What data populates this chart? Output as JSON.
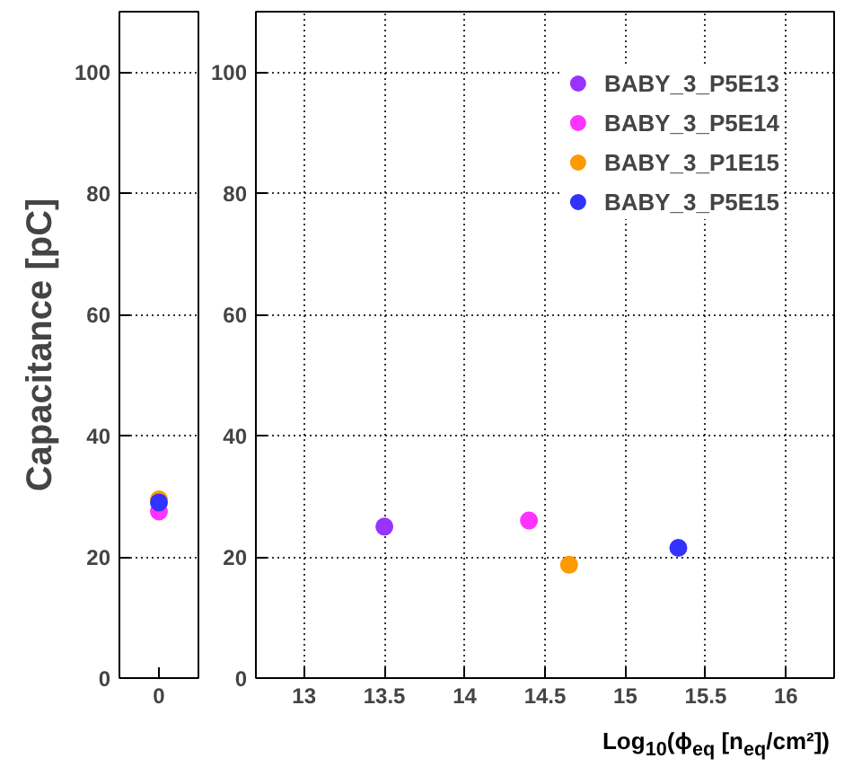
{
  "chart_data": [
    {
      "type": "scatter",
      "ylabel": "Capacitance [pC]",
      "categories": [
        "0"
      ],
      "ylim": [
        0,
        110
      ],
      "yticks": [
        0,
        20,
        40,
        60,
        80,
        100
      ],
      "grid": "y",
      "marker": "circle",
      "legend": false,
      "series": [
        {
          "color": "#9933ff",
          "values": [
            null
          ]
        },
        {
          "color": "#ff33ff",
          "values": [
            27.5
          ]
        },
        {
          "color": "#ff9900",
          "values": [
            29.5
          ]
        },
        {
          "color": "#3333ff",
          "values": [
            29
          ]
        }
      ]
    },
    {
      "type": "scatter",
      "xlabel": "Log$_{10}$(ϕ$_{eq}$ [n$_{eq}$/cm²])",
      "xlim": [
        12.7,
        16.3
      ],
      "xticks": [
        13,
        13.5,
        14,
        14.5,
        15,
        15.5,
        16
      ],
      "ylim": [
        0,
        110
      ],
      "yticks": [
        0,
        20,
        40,
        60,
        80,
        100
      ],
      "grid": true,
      "marker": "circle",
      "legend": "top right",
      "series": [
        {
          "name": "BABY_3_P5E13",
          "color": "#9933ff",
          "x": [
            13.5
          ],
          "values": [
            25
          ]
        },
        {
          "name": "BABY_3_P5E14",
          "color": "#ff33ff",
          "x": [
            14.4
          ],
          "values": [
            26
          ]
        },
        {
          "name": "BABY_3_P1E15",
          "color": "#ff9900",
          "x": [
            14.65
          ],
          "values": [
            18.7
          ]
        },
        {
          "name": "BABY_3_P5E15",
          "color": "#3333ff",
          "x": [
            15.33
          ],
          "values": [
            21.5
          ]
        }
      ]
    }
  ]
}
